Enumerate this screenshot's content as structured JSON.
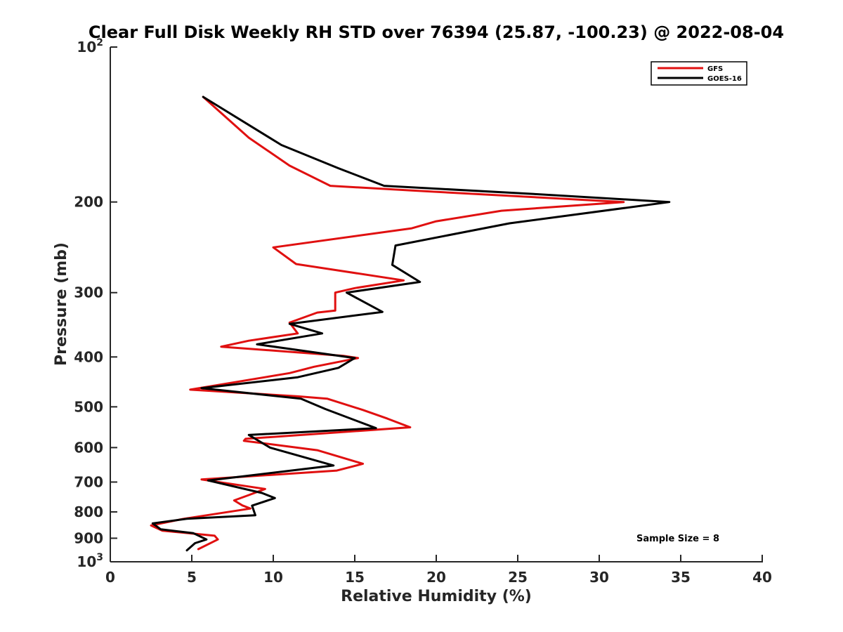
{
  "chart_data": {
    "type": "line",
    "title": "Clear Full Disk Weekly RH STD over 76394 (25.87, -100.23) @ 2022-08-04",
    "xlabel": "Relative Humidity (%)",
    "ylabel": "Pressure (mb)",
    "xlim": [
      0,
      40
    ],
    "ylim": [
      100,
      1000
    ],
    "y_scale": "log",
    "y_reversed": true,
    "x_ticks": [
      "0",
      "5",
      "10",
      "15",
      "20",
      "25",
      "30",
      "35",
      "40"
    ],
    "y_ticks": [
      {
        "value": 100,
        "base": "10",
        "exp": "2"
      },
      {
        "value": 200,
        "label": "200"
      },
      {
        "value": 300,
        "label": "300"
      },
      {
        "value": 400,
        "label": "400"
      },
      {
        "value": 500,
        "label": "500"
      },
      {
        "value": 600,
        "label": "600"
      },
      {
        "value": 700,
        "label": "700"
      },
      {
        "value": 800,
        "label": "800"
      },
      {
        "value": 900,
        "label": "900"
      },
      {
        "value": 1000,
        "base": "10",
        "exp": "3"
      }
    ],
    "legend_position": "top-right",
    "grid": false,
    "annotation": "Sample Size = 8",
    "series": [
      {
        "name": "GFS",
        "color": "#e01010",
        "points": [
          [
            5.7,
            125
          ],
          [
            8.5,
            150
          ],
          [
            11.0,
            170
          ],
          [
            13.5,
            186
          ],
          [
            18.5,
            190
          ],
          [
            31.5,
            200
          ],
          [
            24.0,
            208
          ],
          [
            20.0,
            218
          ],
          [
            18.5,
            225
          ],
          [
            10.0,
            245
          ],
          [
            11.4,
            264
          ],
          [
            18.0,
            284
          ],
          [
            15.0,
            294
          ],
          [
            13.8,
            300
          ],
          [
            13.8,
            325
          ],
          [
            12.7,
            328
          ],
          [
            11.0,
            343
          ],
          [
            11.5,
            360
          ],
          [
            8.5,
            372
          ],
          [
            6.8,
            382
          ],
          [
            14.3,
            398
          ],
          [
            15.2,
            402
          ],
          [
            12.5,
            418
          ],
          [
            11.0,
            430
          ],
          [
            4.9,
            463
          ],
          [
            11.5,
            477
          ],
          [
            13.3,
            482
          ],
          [
            15.5,
            507
          ],
          [
            17.0,
            527
          ],
          [
            18.4,
            548
          ],
          [
            8.3,
            577
          ],
          [
            8.2,
            582
          ],
          [
            12.7,
            607
          ],
          [
            15.5,
            645
          ],
          [
            13.9,
            665
          ],
          [
            5.6,
            692
          ],
          [
            9.5,
            722
          ],
          [
            8.5,
            742
          ],
          [
            7.6,
            760
          ],
          [
            8.1,
            777
          ],
          [
            8.6,
            788
          ],
          [
            4.5,
            825
          ],
          [
            2.5,
            850
          ],
          [
            3.2,
            870
          ],
          [
            6.4,
            890
          ],
          [
            6.6,
            905
          ],
          [
            5.4,
            945
          ]
        ]
      },
      {
        "name": "GOES-16",
        "color": "#000000",
        "points": [
          [
            5.7,
            125
          ],
          [
            10.5,
            155
          ],
          [
            14.0,
            172
          ],
          [
            16.8,
            186
          ],
          [
            26.0,
            193
          ],
          [
            34.3,
            200
          ],
          [
            24.5,
            220
          ],
          [
            17.5,
            243
          ],
          [
            17.3,
            265
          ],
          [
            19.0,
            286
          ],
          [
            14.5,
            300
          ],
          [
            16.7,
            327
          ],
          [
            11.0,
            345
          ],
          [
            13.0,
            360
          ],
          [
            9.0,
            378
          ],
          [
            15.0,
            402
          ],
          [
            14.0,
            420
          ],
          [
            11.5,
            438
          ],
          [
            5.6,
            460
          ],
          [
            11.7,
            482
          ],
          [
            13.2,
            505
          ],
          [
            16.3,
            550
          ],
          [
            8.5,
            567
          ],
          [
            9.8,
            600
          ],
          [
            13.7,
            650
          ],
          [
            6.0,
            695
          ],
          [
            9.3,
            735
          ],
          [
            10.1,
            752
          ],
          [
            8.7,
            778
          ],
          [
            8.9,
            812
          ],
          [
            4.7,
            825
          ],
          [
            2.6,
            842
          ],
          [
            3.1,
            865
          ],
          [
            5.1,
            880
          ],
          [
            5.9,
            905
          ],
          [
            5.2,
            920
          ],
          [
            4.7,
            950
          ]
        ]
      }
    ]
  }
}
